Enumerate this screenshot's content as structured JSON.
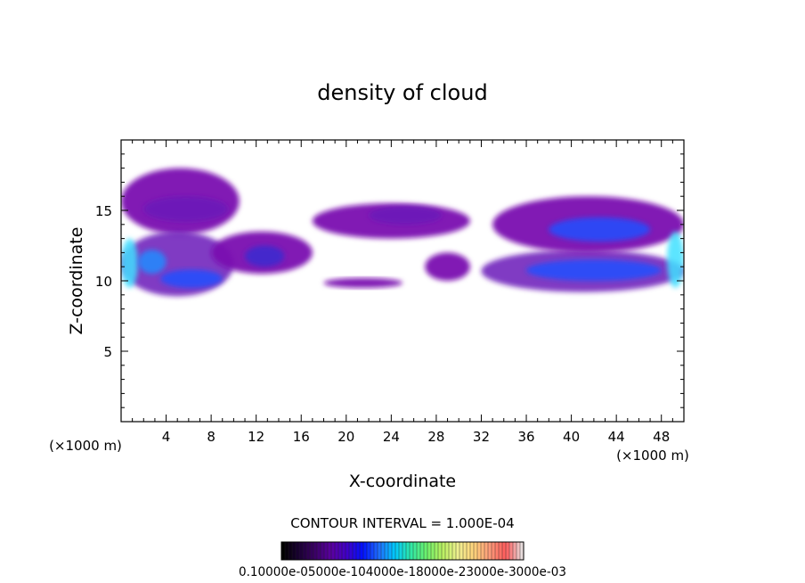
{
  "chart_data": {
    "type": "heatmap",
    "title": "density of cloud",
    "xlabel": "X-coordinate",
    "ylabel": "Z-coordinate",
    "x_unit_left": "(×1000 m)",
    "x_unit_right": "(×1000 m)",
    "xlim": [
      0,
      50
    ],
    "ylim": [
      0,
      20
    ],
    "x_ticks": [
      4,
      8,
      12,
      16,
      20,
      24,
      28,
      32,
      36,
      40,
      44,
      48
    ],
    "y_ticks": [
      5,
      10,
      15
    ],
    "contour_interval_label": "CONTOUR INTERVAL = 1.000E-04",
    "colorbar_label_text": "0.10000e-05000e-104000e-18000e-23000e-3000e-03",
    "colormap": [
      "#000000",
      "#1a0033",
      "#3b0066",
      "#5a00a0",
      "#4000c8",
      "#0010ff",
      "#1e6cff",
      "#00c8ff",
      "#2ee8a8",
      "#6cf06c",
      "#b8f060",
      "#f0f090",
      "#ffd27a",
      "#ff9a7a",
      "#ff5a5a",
      "#e8dcdc"
    ],
    "cloud_regions": [
      {
        "x": [
          0,
          10.5
        ],
        "z": [
          13.3,
          18.0
        ],
        "level": 1
      },
      {
        "x": [
          2.0,
          9.5
        ],
        "z": [
          14.2,
          16.0
        ],
        "level": 2
      },
      {
        "x": [
          0,
          10.0
        ],
        "z": [
          8.9,
          13.5
        ],
        "level": 2
      },
      {
        "x": [
          0,
          1.5
        ],
        "z": [
          9.5,
          13.0
        ],
        "level": 6
      },
      {
        "x": [
          1.5,
          4.0
        ],
        "z": [
          10.5,
          12.2
        ],
        "level": 5
      },
      {
        "x": [
          3.5,
          9.0
        ],
        "z": [
          9.5,
          10.8
        ],
        "level": 4
      },
      {
        "x": [
          8.0,
          17.0
        ],
        "z": [
          10.5,
          13.5
        ],
        "level": 1
      },
      {
        "x": [
          11.0,
          14.5
        ],
        "z": [
          11.0,
          12.5
        ],
        "level": 3
      },
      {
        "x": [
          17.0,
          31.0
        ],
        "z": [
          13.0,
          15.5
        ],
        "level": 1
      },
      {
        "x": [
          22.0,
          28.5
        ],
        "z": [
          14.0,
          15.3
        ],
        "level": 2
      },
      {
        "x": [
          27.0,
          31.0
        ],
        "z": [
          10.0,
          12.0
        ],
        "level": 1
      },
      {
        "x": [
          18.0,
          25.0
        ],
        "z": [
          9.5,
          10.2
        ],
        "level": 1
      },
      {
        "x": [
          32.0,
          50.0
        ],
        "z": [
          9.2,
          12.2
        ],
        "level": 2
      },
      {
        "x": [
          36.0,
          48.0
        ],
        "z": [
          10.0,
          11.5
        ],
        "level": 4
      },
      {
        "x": [
          33.0,
          50.0
        ],
        "z": [
          12.0,
          16.0
        ],
        "level": 1
      },
      {
        "x": [
          38.0,
          47.0
        ],
        "z": [
          12.8,
          14.5
        ],
        "level": 4
      },
      {
        "x": [
          48.5,
          50.0
        ],
        "z": [
          9.5,
          13.5
        ],
        "level": 6
      }
    ]
  }
}
